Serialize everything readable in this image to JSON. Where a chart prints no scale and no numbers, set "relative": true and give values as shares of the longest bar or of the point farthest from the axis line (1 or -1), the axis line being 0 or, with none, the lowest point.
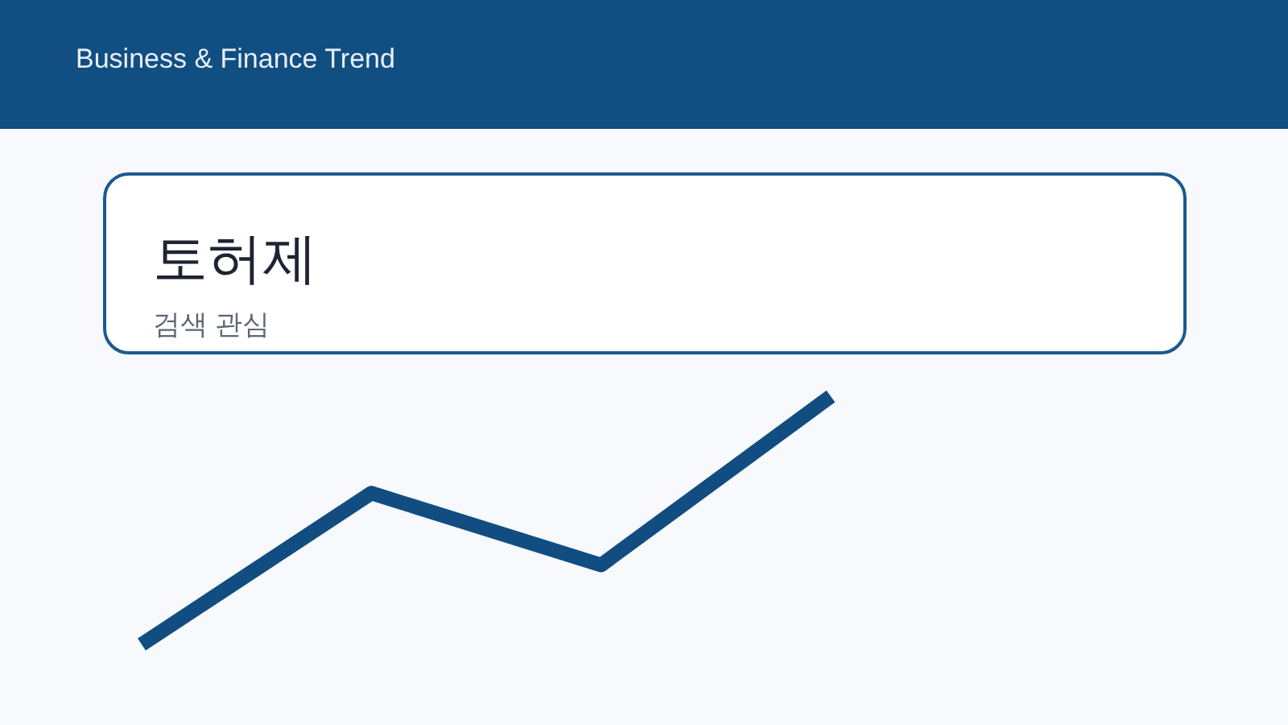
{
  "chart_data": {
    "type": "line",
    "title": "토허제",
    "subtitle": "검색 관심",
    "annotations": [
      "Business & Finance Trend"
    ],
    "categories": [
      null,
      null,
      null,
      null
    ],
    "series": [
      {
        "color": "#114d80",
        "values": [
          0,
          0.61,
          0.32,
          1
        ]
      }
    ],
    "relative": true
  }
}
